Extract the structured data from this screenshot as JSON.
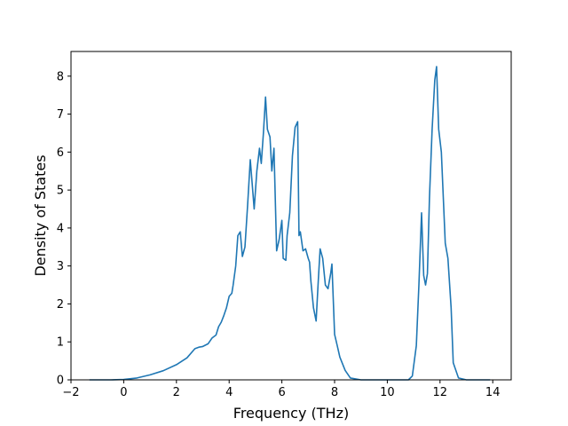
{
  "chart_data": {
    "type": "line",
    "title": "",
    "xlabel": "Frequency (THz)",
    "ylabel": "Density of States",
    "xlim": [
      -2,
      14.7
    ],
    "ylim": [
      0,
      8.65
    ],
    "xticks": [
      -2,
      0,
      2,
      4,
      6,
      8,
      10,
      12,
      14
    ],
    "xtick_labels": [
      "−2",
      "0",
      "2",
      "4",
      "6",
      "8",
      "10",
      "12",
      "14"
    ],
    "yticks": [
      0,
      1,
      2,
      3,
      4,
      5,
      6,
      7,
      8
    ],
    "ytick_labels": [
      "0",
      "1",
      "2",
      "3",
      "4",
      "5",
      "6",
      "7",
      "8"
    ],
    "grid": false,
    "line_color": "#1f77b4",
    "series": [
      {
        "x": [
          -1.3,
          -0.5,
          0.0,
          0.5,
          1.0,
          1.5,
          2.0,
          2.4,
          2.7,
          2.85,
          3.0,
          3.2,
          3.35,
          3.5,
          3.6,
          3.7,
          3.8,
          3.9,
          4.0,
          4.1,
          4.15,
          4.25,
          4.33,
          4.42,
          4.5,
          4.6,
          4.7,
          4.8,
          4.95,
          5.05,
          5.15,
          5.22,
          5.3,
          5.38,
          5.45,
          5.55,
          5.62,
          5.7,
          5.8,
          5.9,
          6.0,
          6.05,
          6.15,
          6.2,
          6.3,
          6.4,
          6.5,
          6.6,
          6.65,
          6.7,
          6.8,
          6.9,
          7.0,
          7.05,
          7.1,
          7.2,
          7.3,
          7.38,
          7.45,
          7.55,
          7.65,
          7.75,
          7.85,
          7.9,
          8.0,
          8.1,
          8.2,
          8.4,
          8.6,
          9.0,
          10.0,
          10.8,
          10.95,
          11.1,
          11.2,
          11.3,
          11.38,
          11.45,
          11.52,
          11.6,
          11.7,
          11.8,
          11.87,
          11.95,
          12.05,
          12.2,
          12.3,
          12.42,
          12.5,
          12.7,
          13.0,
          13.9
        ],
        "y": [
          0,
          0,
          0.01,
          0.05,
          0.13,
          0.24,
          0.4,
          0.58,
          0.82,
          0.86,
          0.88,
          0.95,
          1.1,
          1.18,
          1.4,
          1.52,
          1.7,
          1.9,
          2.2,
          2.28,
          2.5,
          3.0,
          3.8,
          3.9,
          3.25,
          3.5,
          4.6,
          5.8,
          4.5,
          5.5,
          6.1,
          5.7,
          6.5,
          7.45,
          6.6,
          6.4,
          5.5,
          6.1,
          3.4,
          3.7,
          4.2,
          3.2,
          3.15,
          3.8,
          4.4,
          5.9,
          6.65,
          6.8,
          3.8,
          3.9,
          3.4,
          3.45,
          3.2,
          3.1,
          2.6,
          1.9,
          1.55,
          2.6,
          3.45,
          3.2,
          2.5,
          2.4,
          2.8,
          3.05,
          1.2,
          0.9,
          0.6,
          0.25,
          0.05,
          0,
          0,
          0,
          0.1,
          0.9,
          2.5,
          4.4,
          2.75,
          2.5,
          2.8,
          4.8,
          6.6,
          7.9,
          8.25,
          6.6,
          6.0,
          3.6,
          3.2,
          1.9,
          0.45,
          0.05,
          0,
          0
        ]
      }
    ]
  }
}
